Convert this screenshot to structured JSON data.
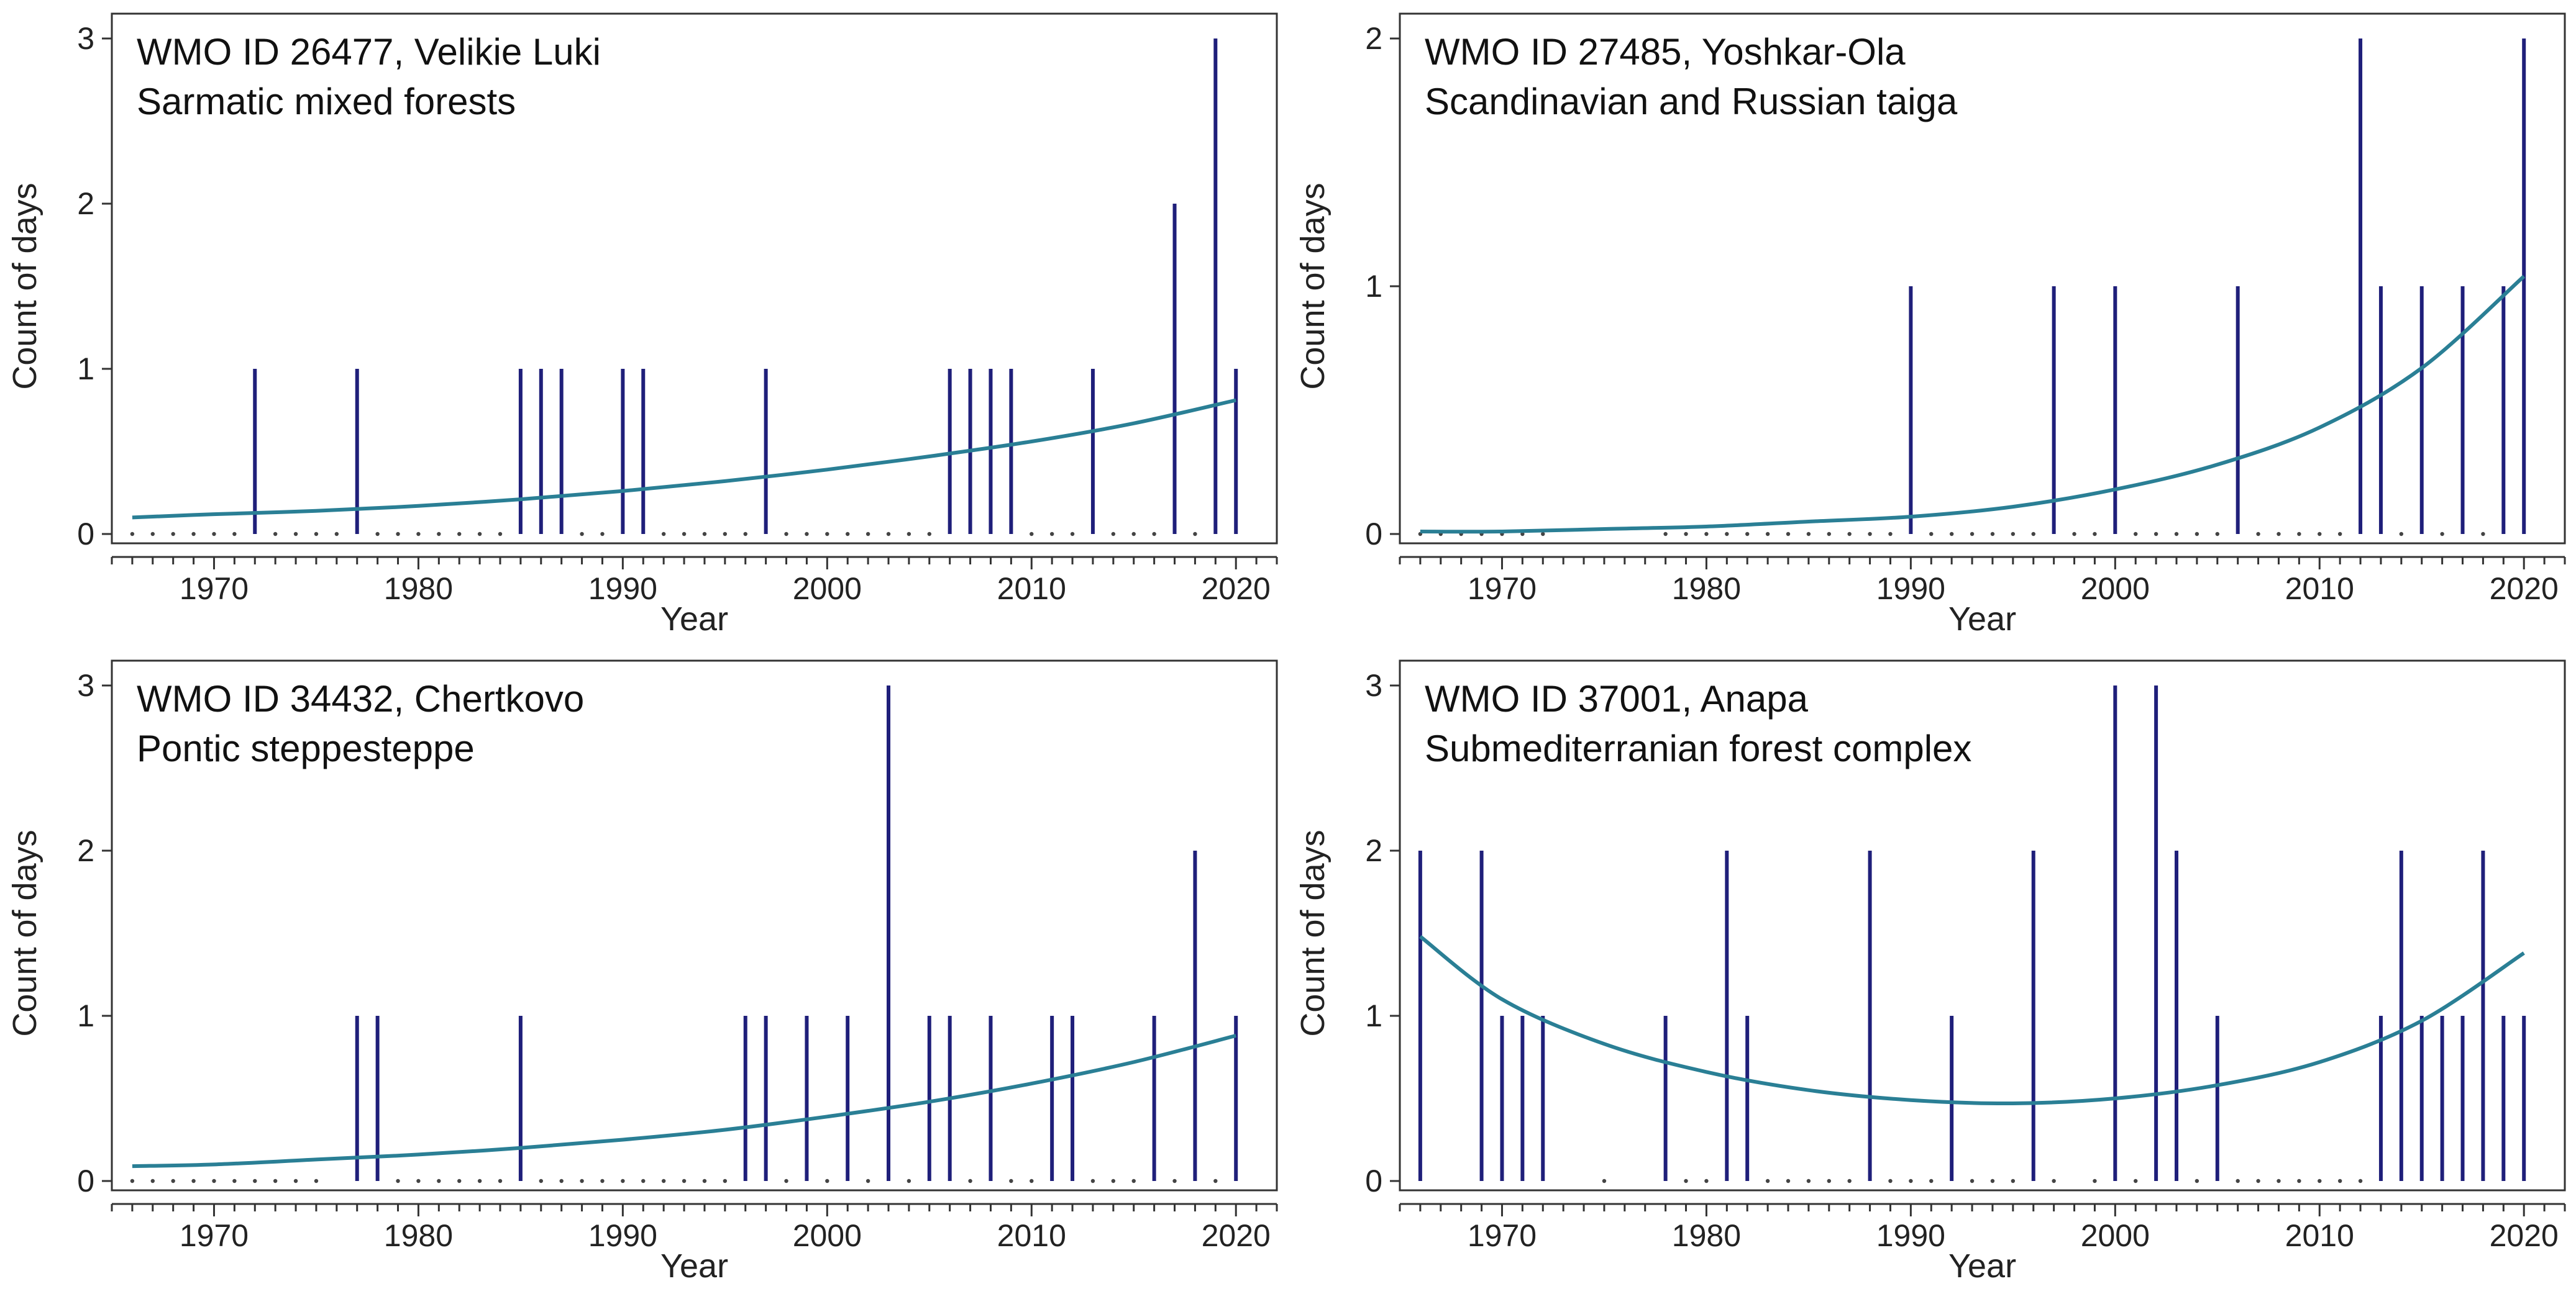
{
  "chart_data": [
    {
      "type": "bar",
      "title": "WMO ID 26477, Velikie Luki",
      "subtitle": "Sarmatic mixed forests",
      "xlabel": "Year",
      "ylabel": "Count of days",
      "xlim": [
        1965,
        2022
      ],
      "ylim": [
        0,
        3
      ],
      "x_ticks": [
        1970,
        1980,
        1990,
        2000,
        2010,
        2020
      ],
      "y_ticks": [
        0,
        1,
        2,
        3
      ],
      "series": [
        {
          "name": "Count of days",
          "style": "spike",
          "color": "#1f1f7a",
          "x": [
            1972,
            1977,
            1985,
            1986,
            1987,
            1990,
            1991,
            1997,
            2006,
            2007,
            2008,
            2009,
            2013,
            2017,
            2019,
            2020
          ],
          "values": [
            1,
            1,
            1,
            1,
            1,
            1,
            1,
            1,
            1,
            1,
            1,
            1,
            1,
            2,
            3,
            1
          ]
        },
        {
          "name": "Zero-count years",
          "style": "dot",
          "color": "#444444",
          "x": [
            1966,
            1967,
            1968,
            1969,
            1970,
            1971,
            1973,
            1974,
            1975,
            1976,
            1978,
            1979,
            1980,
            1981,
            1982,
            1983,
            1984,
            1988,
            1989,
            1992,
            1993,
            1994,
            1995,
            1996,
            1998,
            1999,
            2000,
            2001,
            2002,
            2003,
            2004,
            2005,
            2010,
            2011,
            2012,
            2014,
            2015,
            2016,
            2018
          ],
          "values": [
            0,
            0,
            0,
            0,
            0,
            0,
            0,
            0,
            0,
            0,
            0,
            0,
            0,
            0,
            0,
            0,
            0,
            0,
            0,
            0,
            0,
            0,
            0,
            0,
            0,
            0,
            0,
            0,
            0,
            0,
            0,
            0,
            0,
            0,
            0,
            0,
            0,
            0,
            0
          ]
        },
        {
          "name": "Fitted trend",
          "style": "line",
          "color": "#2a7f95",
          "x": [
            1966,
            1970,
            1975,
            1980,
            1985,
            1990,
            1995,
            2000,
            2005,
            2010,
            2015,
            2020
          ],
          "values": [
            0.1,
            0.12,
            0.14,
            0.17,
            0.21,
            0.26,
            0.32,
            0.39,
            0.47,
            0.56,
            0.67,
            0.81
          ]
        }
      ]
    },
    {
      "type": "bar",
      "title": "WMO ID 27485, Yoshkar-Ola",
      "subtitle": "Scandinavian and Russian taiga",
      "xlabel": "Year",
      "ylabel": "Count of days",
      "xlim": [
        1965,
        2022
      ],
      "ylim": [
        0,
        2
      ],
      "x_ticks": [
        1970,
        1980,
        1990,
        2000,
        2010,
        2020
      ],
      "y_ticks": [
        0,
        1,
        2
      ],
      "series": [
        {
          "name": "Count of days",
          "style": "spike",
          "color": "#1f1f7a",
          "x": [
            1990,
            1997,
            2000,
            2006,
            2012,
            2013,
            2015,
            2017,
            2019,
            2020
          ],
          "values": [
            1,
            1,
            1,
            1,
            2,
            1,
            1,
            1,
            1,
            2
          ]
        },
        {
          "name": "Zero-count years",
          "style": "dot",
          "color": "#444444",
          "x": [
            1966,
            1967,
            1968,
            1969,
            1970,
            1971,
            1972,
            1978,
            1979,
            1980,
            1981,
            1982,
            1983,
            1984,
            1985,
            1986,
            1987,
            1988,
            1989,
            1991,
            1992,
            1993,
            1994,
            1995,
            1996,
            1998,
            1999,
            2001,
            2002,
            2003,
            2004,
            2005,
            2007,
            2008,
            2009,
            2010,
            2011,
            2014,
            2016,
            2018
          ],
          "values": [
            0,
            0,
            0,
            0,
            0,
            0,
            0,
            0,
            0,
            0,
            0,
            0,
            0,
            0,
            0,
            0,
            0,
            0,
            0,
            0,
            0,
            0,
            0,
            0,
            0,
            0,
            0,
            0,
            0,
            0,
            0,
            0,
            0,
            0,
            0,
            0,
            0,
            0,
            0,
            0
          ]
        },
        {
          "name": "Fitted trend",
          "style": "line",
          "color": "#2a7f95",
          "x": [
            1966,
            1970,
            1975,
            1980,
            1985,
            1990,
            1995,
            2000,
            2005,
            2010,
            2015,
            2020
          ],
          "values": [
            0.01,
            0.01,
            0.02,
            0.03,
            0.05,
            0.07,
            0.11,
            0.18,
            0.28,
            0.43,
            0.67,
            1.04
          ]
        }
      ]
    },
    {
      "type": "bar",
      "title": "WMO ID 34432, Chertkovo",
      "subtitle": "Pontic steppesteppe",
      "xlabel": "Year",
      "ylabel": "Count of days",
      "xlim": [
        1965,
        2022
      ],
      "ylim": [
        0,
        3
      ],
      "x_ticks": [
        1970,
        1980,
        1990,
        2000,
        2010,
        2020
      ],
      "y_ticks": [
        0,
        1,
        2,
        3
      ],
      "series": [
        {
          "name": "Count of days",
          "style": "spike",
          "color": "#1f1f7a",
          "x": [
            1977,
            1978,
            1985,
            1996,
            1997,
            1999,
            2001,
            2003,
            2005,
            2006,
            2008,
            2011,
            2012,
            2016,
            2018,
            2020
          ],
          "values": [
            1,
            1,
            1,
            1,
            1,
            1,
            1,
            3,
            1,
            1,
            1,
            1,
            1,
            1,
            2,
            1
          ]
        },
        {
          "name": "Zero-count years",
          "style": "dot",
          "color": "#444444",
          "x": [
            1966,
            1967,
            1968,
            1969,
            1970,
            1971,
            1972,
            1973,
            1974,
            1975,
            1979,
            1980,
            1981,
            1982,
            1983,
            1984,
            1986,
            1987,
            1988,
            1989,
            1990,
            1991,
            1992,
            1993,
            1994,
            1995,
            1998,
            2000,
            2002,
            2004,
            2007,
            2009,
            2010,
            2013,
            2014,
            2015,
            2017,
            2019
          ],
          "values": [
            0,
            0,
            0,
            0,
            0,
            0,
            0,
            0,
            0,
            0,
            0,
            0,
            0,
            0,
            0,
            0,
            0,
            0,
            0,
            0,
            0,
            0,
            0,
            0,
            0,
            0,
            0,
            0,
            0,
            0,
            0,
            0,
            0,
            0,
            0,
            0,
            0,
            0
          ]
        },
        {
          "name": "Fitted trend",
          "style": "line",
          "color": "#2a7f95",
          "x": [
            1966,
            1970,
            1975,
            1980,
            1985,
            1990,
            1995,
            2000,
            2005,
            2010,
            2015,
            2020
          ],
          "values": [
            0.09,
            0.1,
            0.13,
            0.16,
            0.2,
            0.25,
            0.31,
            0.39,
            0.48,
            0.59,
            0.72,
            0.88
          ]
        }
      ]
    },
    {
      "type": "bar",
      "title": "WMO ID 37001, Anapa",
      "subtitle": "Submediterranian forest complex",
      "xlabel": "Year",
      "ylabel": "Count of days",
      "xlim": [
        1965,
        2022
      ],
      "ylim": [
        0,
        3
      ],
      "x_ticks": [
        1970,
        1980,
        1990,
        2000,
        2010,
        2020
      ],
      "y_ticks": [
        0,
        1,
        2,
        3
      ],
      "series": [
        {
          "name": "Count of days",
          "style": "spike",
          "color": "#1f1f7a",
          "x": [
            1966,
            1969,
            1970,
            1971,
            1972,
            1978,
            1981,
            1982,
            1988,
            1992,
            1996,
            2000,
            2002,
            2003,
            2005,
            2013,
            2014,
            2015,
            2016,
            2017,
            2018,
            2019,
            2020
          ],
          "values": [
            2,
            2,
            1,
            1,
            1,
            1,
            2,
            1,
            2,
            1,
            2,
            3,
            3,
            2,
            1,
            1,
            2,
            1,
            1,
            1,
            2,
            1,
            1
          ]
        },
        {
          "name": "Zero-count years",
          "style": "dot",
          "color": "#444444",
          "x": [
            1975,
            1979,
            1980,
            1983,
            1984,
            1985,
            1986,
            1987,
            1989,
            1990,
            1991,
            1993,
            1994,
            1995,
            1997,
            1999,
            2001,
            2004,
            2006,
            2007,
            2008,
            2009,
            2010,
            2011,
            2012
          ],
          "values": [
            0,
            0,
            0,
            0,
            0,
            0,
            0,
            0,
            0,
            0,
            0,
            0,
            0,
            0,
            0,
            0,
            0,
            0,
            0,
            0,
            0,
            0,
            0,
            0,
            0
          ]
        },
        {
          "name": "Fitted trend",
          "style": "line",
          "color": "#2a7f95",
          "x": [
            1966,
            1970,
            1975,
            1980,
            1985,
            1990,
            1995,
            2000,
            2005,
            2010,
            2015,
            2020
          ],
          "values": [
            1.48,
            1.1,
            0.83,
            0.66,
            0.55,
            0.49,
            0.47,
            0.5,
            0.58,
            0.72,
            0.97,
            1.38
          ]
        }
      ]
    }
  ]
}
